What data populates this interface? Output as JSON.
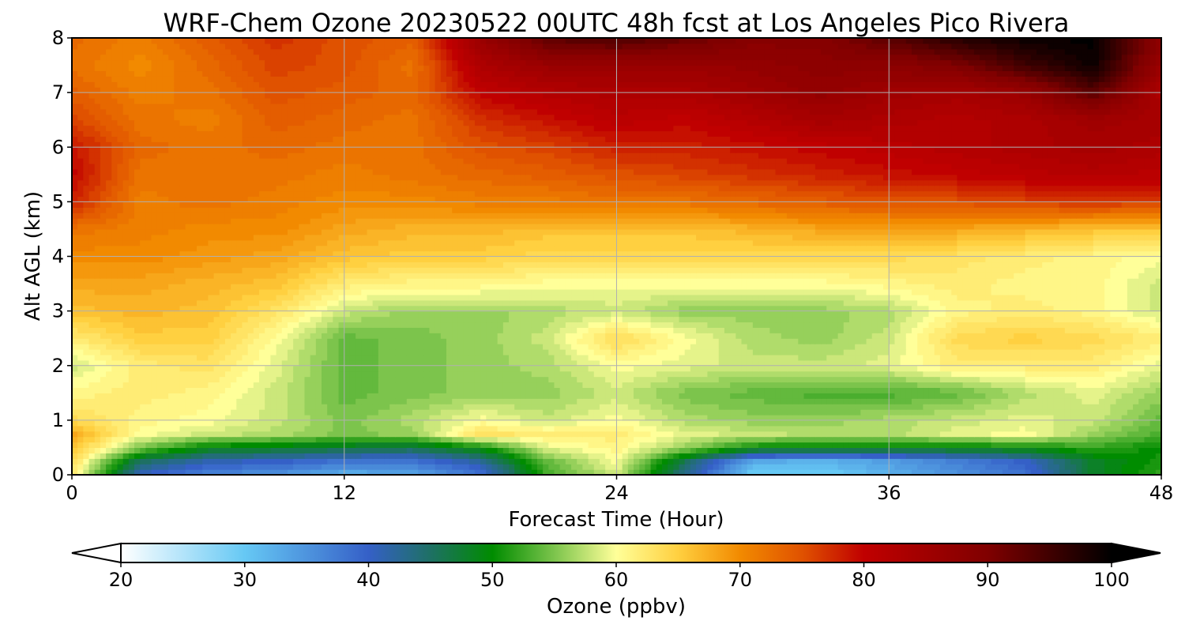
{
  "chart_data": {
    "type": "heatmap",
    "title": "WRF-Chem Ozone  20230522 00UTC 48h fcst at Los Angeles Pico Rivera",
    "xlabel": "Forecast Time (Hour)",
    "ylabel": "Alt AGL (km)",
    "xlim": [
      0,
      48
    ],
    "ylim": [
      0,
      8
    ],
    "x_ticks": [
      "0",
      "12",
      "24",
      "36",
      "48"
    ],
    "y_ticks": [
      "0",
      "1",
      "2",
      "3",
      "4",
      "5",
      "6",
      "7",
      "8"
    ],
    "grid": true,
    "x_hours": [
      0,
      3,
      6,
      9,
      12,
      15,
      18,
      21,
      24,
      27,
      30,
      33,
      36,
      39,
      42,
      45,
      48
    ],
    "z_km": [
      0,
      0.25,
      0.5,
      0.75,
      1,
      1.5,
      2,
      2.5,
      3,
      3.5,
      4,
      4.5,
      5,
      5.5,
      6,
      6.5,
      7,
      7.5,
      8
    ],
    "values_ppbv": [
      [
        62,
        40,
        36,
        35,
        32,
        33,
        38,
        53,
        58,
        43,
        29,
        29,
        32,
        35,
        38,
        48,
        52
      ],
      [
        64,
        45,
        41,
        40,
        38,
        38,
        42,
        54,
        60,
        46,
        33,
        32,
        34,
        37,
        40,
        48,
        51
      ],
      [
        66,
        55,
        49,
        48,
        47,
        46,
        50,
        59,
        61,
        56,
        50,
        49,
        49,
        49,
        50,
        52,
        50
      ],
      [
        68,
        60,
        58,
        57,
        55,
        56,
        63,
        62,
        62,
        59,
        58,
        57,
        57,
        59,
        60,
        56,
        53
      ],
      [
        64,
        61,
        60,
        58,
        55,
        57,
        60,
        58,
        60,
        57,
        56,
        56,
        57,
        58,
        59,
        58,
        54
      ],
      [
        61,
        62,
        61,
        58,
        54,
        55,
        56,
        56,
        58,
        55,
        54,
        53,
        53,
        54,
        57,
        59,
        56
      ],
      [
        58,
        62,
        63,
        59,
        54,
        55,
        56,
        57,
        60,
        59,
        58,
        58,
        59,
        62,
        62,
        62,
        59
      ],
      [
        62,
        65,
        65,
        60,
        54,
        55,
        56,
        58,
        64,
        60,
        57,
        56,
        58,
        64,
        65,
        64,
        62
      ],
      [
        66,
        67,
        66,
        63,
        58,
        56,
        56,
        57,
        58,
        56,
        56,
        56,
        57,
        61,
        62,
        61,
        58
      ],
      [
        68,
        68,
        67,
        66,
        62,
        61,
        61,
        60,
        60,
        60,
        60,
        60,
        61,
        62,
        61,
        61,
        58
      ],
      [
        70,
        70,
        69,
        68,
        66,
        65,
        65,
        64,
        64,
        64,
        64,
        64,
        64,
        63,
        62,
        61,
        60
      ],
      [
        72,
        71,
        70,
        70,
        68,
        67,
        67,
        66,
        66,
        66,
        67,
        68,
        68,
        68,
        67,
        66,
        66
      ],
      [
        78,
        71,
        72,
        71,
        70,
        70,
        71,
        71,
        72,
        72,
        73,
        74,
        75,
        75,
        76,
        77,
        76
      ],
      [
        80,
        72,
        72,
        72,
        71,
        72,
        73,
        74,
        75,
        76,
        77,
        78,
        79,
        80,
        81,
        82,
        81
      ],
      [
        79,
        73,
        72,
        73,
        72,
        72,
        75,
        76,
        78,
        78,
        79,
        80,
        81,
        82,
        83,
        84,
        83
      ],
      [
        76,
        72,
        71,
        74,
        73,
        72,
        77,
        79,
        81,
        80,
        82,
        84,
        83,
        82,
        83,
        85,
        84
      ],
      [
        74,
        71,
        72,
        75,
        74,
        73,
        80,
        82,
        83,
        83,
        85,
        87,
        85,
        84,
        86,
        93,
        83
      ],
      [
        72,
        70,
        73,
        76,
        75,
        72,
        83,
        86,
        86,
        86,
        87,
        88,
        88,
        90,
        95,
        99,
        86
      ],
      [
        73,
        71,
        74,
        77,
        75,
        74,
        86,
        93,
        94,
        92,
        89,
        89,
        93,
        97,
        99,
        100,
        88
      ]
    ],
    "colorbar": {
      "label": "Ozone  (ppbv)",
      "min": 20,
      "max": 100,
      "ticks": [
        "20",
        "30",
        "40",
        "50",
        "60",
        "70",
        "80",
        "90",
        "100"
      ],
      "extend": "both",
      "stops": [
        {
          "v": 20,
          "c": "#ffffff"
        },
        {
          "v": 30,
          "c": "#66c8f4"
        },
        {
          "v": 40,
          "c": "#3560c7"
        },
        {
          "v": 45,
          "c": "#1e7064"
        },
        {
          "v": 50,
          "c": "#008c00"
        },
        {
          "v": 55,
          "c": "#7cc44c"
        },
        {
          "v": 60,
          "c": "#ffff99"
        },
        {
          "v": 65,
          "c": "#ffd040"
        },
        {
          "v": 70,
          "c": "#f28a00"
        },
        {
          "v": 75,
          "c": "#e05200"
        },
        {
          "v": 80,
          "c": "#c00000"
        },
        {
          "v": 90,
          "c": "#800000"
        },
        {
          "v": 100,
          "c": "#000000"
        }
      ]
    }
  }
}
